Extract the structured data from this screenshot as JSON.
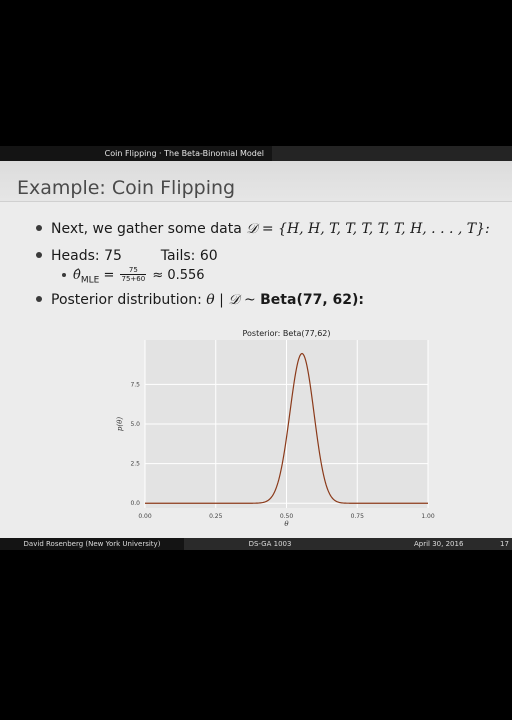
{
  "header": {
    "section": "Coin Flipping · The Beta-Binomial Model"
  },
  "slide": {
    "title": "Example: Coin Flipping",
    "bullet1": {
      "text": "Next, we gather some data",
      "math": "𝒟 = {H, H, T, T, T, T, T, H, . . . , T}:"
    },
    "bullet2": {
      "heads": "Heads: 75",
      "tails": "Tails: 60"
    },
    "sub_bullet": {
      "lhs": "θ̂",
      "subscript": "MLE",
      "equals": "=",
      "frac_num": "75",
      "frac_den": "75+60",
      "approx": "≈ 0.556"
    },
    "bullet3": {
      "text": "Posterior distribution:",
      "math": "θ | 𝒟 ~",
      "bold": "Beta(77, 62):"
    }
  },
  "chart_data": {
    "type": "line",
    "title": "Posterior: Beta(77,62)",
    "xlabel": "θ",
    "ylabel": "p(θ)",
    "xlim": [
      0,
      1
    ],
    "ylim": [
      -0.3,
      10.3
    ],
    "x_ticks": [
      0.0,
      0.25,
      0.5,
      0.75,
      1.0
    ],
    "x_tick_labels": [
      "0.00",
      "0.25",
      "0.50",
      "0.75",
      "1.00"
    ],
    "y_ticks": [
      0.0,
      2.5,
      5.0,
      7.5
    ],
    "y_tick_labels": [
      "0.0",
      "2.5",
      "5.0",
      "7.5"
    ],
    "grid": true,
    "series": [
      {
        "alpha": 77,
        "beta": 62,
        "color": "#8b3a1a"
      }
    ]
  },
  "footer": {
    "author": "David Rosenberg (New York University)",
    "course": "DS-GA 1003",
    "date": "April 30, 2016",
    "page": "17"
  },
  "colors": {
    "plot_background": "#e3e3e3",
    "grid": "#ffffff",
    "curve": "#8b3a1a"
  }
}
